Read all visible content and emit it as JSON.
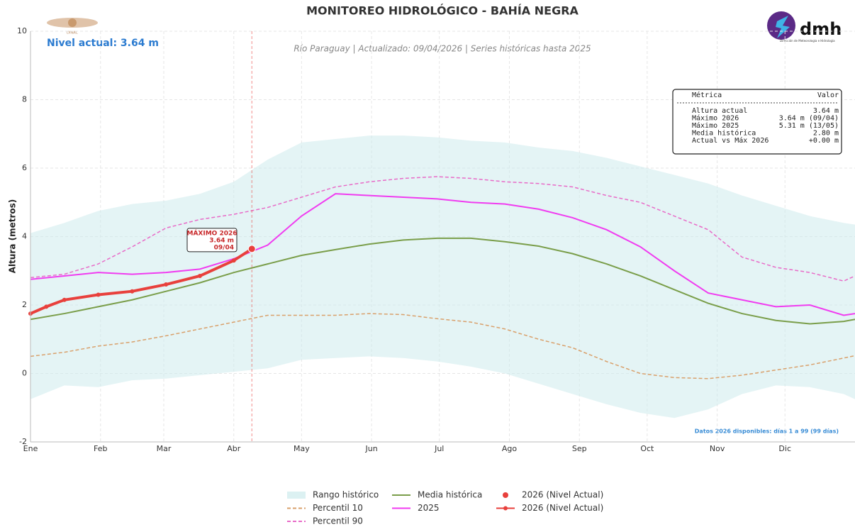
{
  "chart_data": {
    "type": "line",
    "title": "MONITOREO HIDROLÓGICO - BAHÍA NEGRA",
    "subtitle": "Río Paraguay | Actualizado: 09/04/2026 | Series históricas hasta 2025",
    "current_label": "Nivel actual: 3.64 m",
    "ylabel": "Altura (metros)",
    "note": "Datos 2026 disponibles: días 1 a 99 (99 días)",
    "logos": {
      "left": "DINAC",
      "right": "dmh",
      "right_caption": "Dirección de Meteorología e Hidrología"
    },
    "xlim": [
      1,
      366
    ],
    "xticks": [
      {
        "value": 1,
        "label": "Ene"
      },
      {
        "value": 32,
        "label": "Feb"
      },
      {
        "value": 60,
        "label": "Mar"
      },
      {
        "value": 91,
        "label": "Abr"
      },
      {
        "value": 121,
        "label": "May"
      },
      {
        "value": 152,
        "label": "Jun"
      },
      {
        "value": 182,
        "label": "Jul"
      },
      {
        "value": 213,
        "label": "Ago"
      },
      {
        "value": 244,
        "label": "Sep"
      },
      {
        "value": 274,
        "label": "Oct"
      },
      {
        "value": 305,
        "label": "Nov"
      },
      {
        "value": 335,
        "label": "Dic"
      }
    ],
    "ylim": [
      -2,
      10
    ],
    "yticks": [
      -2,
      0,
      2,
      4,
      6,
      8,
      10
    ],
    "grid": true,
    "x": [
      1,
      16,
      31,
      46,
      61,
      76,
      91,
      106,
      121,
      136,
      151,
      166,
      181,
      196,
      211,
      226,
      241,
      256,
      271,
      286,
      301,
      316,
      331,
      346,
      361,
      366
    ],
    "band": {
      "name": "Rango histórico",
      "color": "#cdebec",
      "lower": [
        -0.75,
        -0.35,
        -0.4,
        -0.2,
        -0.15,
        -0.05,
        0.05,
        0.15,
        0.4,
        0.45,
        0.5,
        0.45,
        0.35,
        0.2,
        0.0,
        -0.3,
        -0.6,
        -0.9,
        -1.15,
        -1.3,
        -1.05,
        -0.6,
        -0.35,
        -0.4,
        -0.6,
        -0.75
      ],
      "upper": [
        4.1,
        4.4,
        4.75,
        4.95,
        5.05,
        5.25,
        5.6,
        6.25,
        6.75,
        6.85,
        6.95,
        6.95,
        6.9,
        6.8,
        6.75,
        6.6,
        6.5,
        6.3,
        6.05,
        5.8,
        5.55,
        5.2,
        4.9,
        4.6,
        4.4,
        4.35
      ]
    },
    "series": [
      {
        "name": "Percentil 10",
        "color": "#d9a06b",
        "dashed": true,
        "values": [
          0.5,
          0.62,
          0.8,
          0.92,
          1.1,
          1.3,
          1.5,
          1.7,
          1.7,
          1.7,
          1.75,
          1.72,
          1.6,
          1.5,
          1.3,
          1.0,
          0.75,
          0.35,
          0.0,
          -0.12,
          -0.15,
          -0.05,
          0.1,
          0.25,
          0.45,
          0.52
        ]
      },
      {
        "name": "Percentil 90",
        "color": "#e86bc8",
        "dashed": true,
        "values": [
          2.8,
          2.9,
          3.2,
          3.7,
          4.25,
          4.5,
          4.65,
          4.85,
          5.15,
          5.45,
          5.6,
          5.7,
          5.75,
          5.7,
          5.6,
          5.55,
          5.45,
          5.2,
          5.0,
          4.6,
          4.2,
          3.4,
          3.1,
          2.95,
          2.7,
          2.85
        ]
      },
      {
        "name": "Media histórica",
        "color": "#7a9e4a",
        "dashed": false,
        "values": [
          1.58,
          1.75,
          1.95,
          2.15,
          2.4,
          2.65,
          2.95,
          3.2,
          3.45,
          3.62,
          3.78,
          3.9,
          3.95,
          3.95,
          3.85,
          3.72,
          3.5,
          3.2,
          2.85,
          2.45,
          2.05,
          1.75,
          1.55,
          1.45,
          1.52,
          1.58
        ]
      },
      {
        "name": "2025",
        "color": "#f03cf0",
        "dashed": false,
        "values": [
          2.75,
          2.85,
          2.95,
          2.9,
          2.95,
          3.05,
          3.35,
          3.75,
          4.6,
          5.25,
          5.2,
          5.15,
          5.1,
          5.0,
          4.95,
          4.8,
          4.55,
          4.2,
          3.7,
          3.0,
          2.35,
          2.15,
          1.95,
          2.0,
          1.7,
          1.75
        ]
      }
    ],
    "current": {
      "name": "2026 (Nivel Actual)",
      "color": "#e8403c",
      "x": [
        1,
        8,
        16,
        31,
        46,
        61,
        76,
        91,
        99
      ],
      "values": [
        1.75,
        1.95,
        2.15,
        2.3,
        2.4,
        2.6,
        2.85,
        3.3,
        3.64
      ]
    },
    "point": {
      "name": "2026 (Nivel Actual)",
      "color": "#e8403c",
      "x": 99,
      "value": 3.64
    },
    "annotation": [
      "MÁXIMO 2026",
      "3.64 m",
      "09/04"
    ],
    "table": {
      "header": [
        "Métrica",
        "Valor"
      ],
      "rows": [
        [
          "Altura actual",
          "3.64 m"
        ],
        [
          "Máximo 2026",
          "3.64 m (09/04)"
        ],
        [
          "Máximo 2025",
          "5.31 m (13/05)"
        ],
        [
          "Media histórica",
          "2.80 m"
        ],
        [
          "Actual vs Máx 2026",
          "+0.00 m"
        ]
      ]
    }
  }
}
